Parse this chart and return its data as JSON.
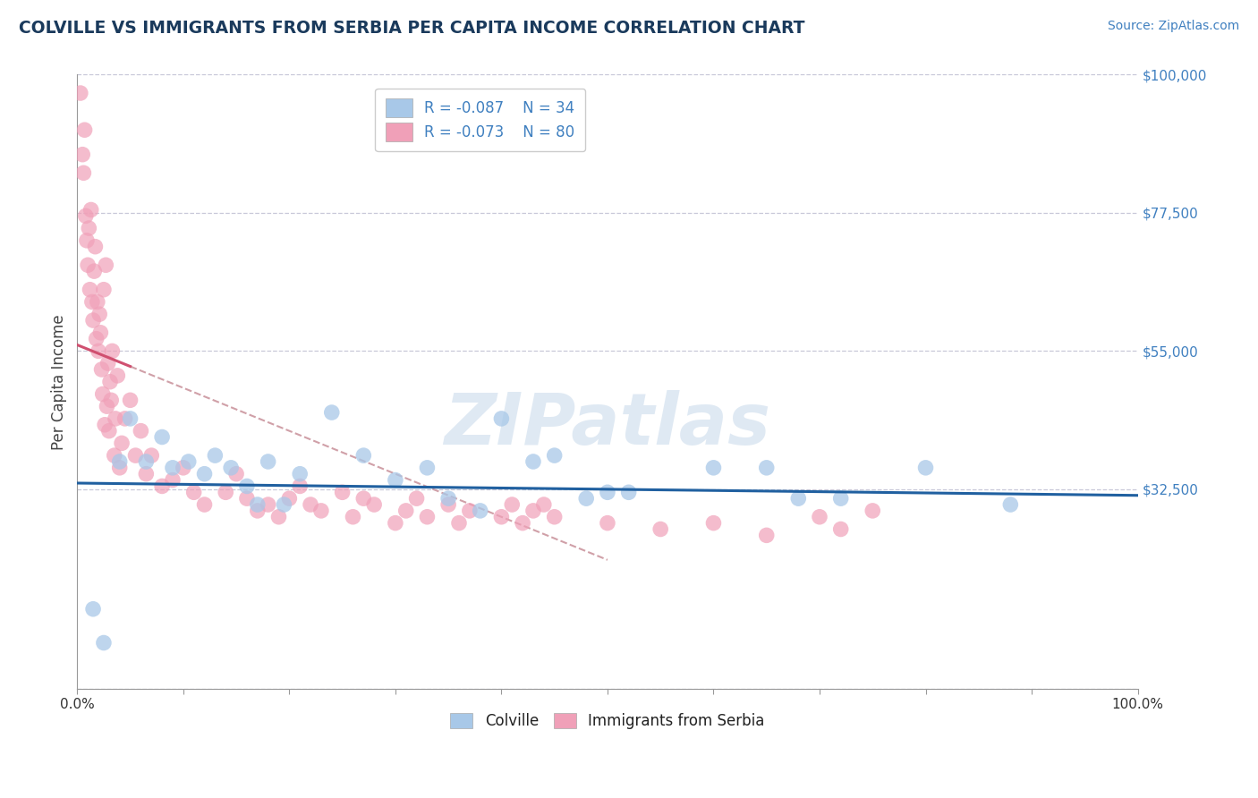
{
  "title": "COLVILLE VS IMMIGRANTS FROM SERBIA PER CAPITA INCOME CORRELATION CHART",
  "source_text": "Source: ZipAtlas.com",
  "ylabel": "Per Capita Income",
  "watermark": "ZIPatlas",
  "xmin": 0.0,
  "xmax": 100.0,
  "ymin": 0,
  "ymax": 100000,
  "yticks": [
    0,
    32500,
    55000,
    77500,
    100000
  ],
  "ytick_labels": [
    "",
    "$32,500",
    "$55,000",
    "$77,500",
    "$100,000"
  ],
  "legend_R1": "R = -0.087",
  "legend_N1": "N = 34",
  "legend_R2": "R = -0.073",
  "legend_N2": "N = 80",
  "colville_color": "#a8c8e8",
  "serbia_color": "#f0a0b8",
  "colville_line_color": "#2060a0",
  "serbia_solid_color": "#d05070",
  "serbia_dash_color": "#d0a0a8",
  "title_color": "#1a3a5c",
  "source_color": "#4080c0",
  "axis_color": "#c8c8d8",
  "legend_text_color": "#4080c0",
  "colville_scatter_x": [
    1.5,
    2.5,
    4.0,
    5.0,
    6.5,
    8.0,
    9.0,
    10.5,
    12.0,
    13.0,
    14.5,
    16.0,
    17.0,
    18.0,
    19.5,
    21.0,
    24.0,
    27.0,
    30.0,
    33.0,
    35.0,
    38.0,
    40.0,
    43.0,
    45.0,
    48.0,
    50.0,
    52.0,
    60.0,
    65.0,
    68.0,
    72.0,
    80.0,
    88.0
  ],
  "colville_scatter_y": [
    13000,
    7500,
    37000,
    44000,
    37000,
    41000,
    36000,
    37000,
    35000,
    38000,
    36000,
    33000,
    30000,
    37000,
    30000,
    35000,
    45000,
    38000,
    34000,
    36000,
    31000,
    29000,
    44000,
    37000,
    38000,
    31000,
    32000,
    32000,
    36000,
    36000,
    31000,
    31000,
    36000,
    30000
  ],
  "serbia_scatter_x": [
    0.3,
    0.5,
    0.6,
    0.7,
    0.8,
    0.9,
    1.0,
    1.1,
    1.2,
    1.3,
    1.4,
    1.5,
    1.6,
    1.7,
    1.8,
    1.9,
    2.0,
    2.1,
    2.2,
    2.3,
    2.4,
    2.5,
    2.6,
    2.7,
    2.8,
    2.9,
    3.0,
    3.1,
    3.2,
    3.3,
    3.5,
    3.6,
    3.8,
    4.0,
    4.2,
    4.5,
    5.0,
    5.5,
    6.0,
    6.5,
    7.0,
    8.0,
    9.0,
    10.0,
    11.0,
    12.0,
    14.0,
    15.0,
    16.0,
    17.0,
    18.0,
    19.0,
    20.0,
    21.0,
    22.0,
    23.0,
    25.0,
    26.0,
    27.0,
    28.0,
    30.0,
    31.0,
    32.0,
    33.0,
    35.0,
    36.0,
    37.0,
    40.0,
    41.0,
    42.0,
    43.0,
    44.0,
    45.0,
    50.0,
    55.0,
    60.0,
    65.0,
    70.0,
    72.0,
    75.0
  ],
  "serbia_scatter_y": [
    97000,
    87000,
    84000,
    91000,
    77000,
    73000,
    69000,
    75000,
    65000,
    78000,
    63000,
    60000,
    68000,
    72000,
    57000,
    63000,
    55000,
    61000,
    58000,
    52000,
    48000,
    65000,
    43000,
    69000,
    46000,
    53000,
    42000,
    50000,
    47000,
    55000,
    38000,
    44000,
    51000,
    36000,
    40000,
    44000,
    47000,
    38000,
    42000,
    35000,
    38000,
    33000,
    34000,
    36000,
    32000,
    30000,
    32000,
    35000,
    31000,
    29000,
    30000,
    28000,
    31000,
    33000,
    30000,
    29000,
    32000,
    28000,
    31000,
    30000,
    27000,
    29000,
    31000,
    28000,
    30000,
    27000,
    29000,
    28000,
    30000,
    27000,
    29000,
    30000,
    28000,
    27000,
    26000,
    27000,
    25000,
    28000,
    26000,
    29000
  ],
  "serbia_solid_xend": 5.0,
  "serbia_dash_xstart": 5.0,
  "serbia_dash_xend": 50.0,
  "colville_line_xstart": 0.0,
  "colville_line_xend": 100.0
}
